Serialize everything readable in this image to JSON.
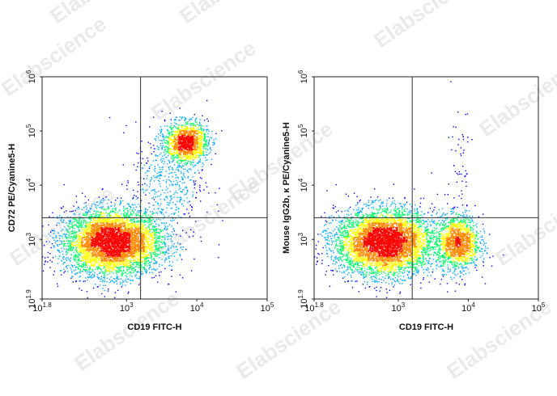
{
  "watermark": "Elabscience",
  "chart_data": [
    {
      "type": "scatter",
      "title": "",
      "xlabel": "CD19 FITC-H",
      "ylabel": "CD72 PE/Cyanine5-H",
      "xscale": "log",
      "yscale": "log",
      "xlim_log10": [
        1.8,
        5
      ],
      "ylim_log10": [
        1.9,
        6
      ],
      "x_tick_labels": [
        {
          "value": 1.8,
          "base": "10",
          "exp": "1.8"
        },
        {
          "value": 3,
          "base": "10",
          "exp": "3"
        },
        {
          "value": 4,
          "base": "10",
          "exp": "4"
        },
        {
          "value": 5,
          "base": "10",
          "exp": "5"
        }
      ],
      "y_tick_labels": [
        {
          "value": 1.9,
          "base": "10",
          "exp": "1.9"
        },
        {
          "value": 3,
          "base": "10",
          "exp": "3"
        },
        {
          "value": 4,
          "base": "10",
          "exp": "4"
        },
        {
          "value": 5,
          "base": "10",
          "exp": "5"
        },
        {
          "value": 6,
          "base": "10",
          "exp": "6"
        }
      ],
      "gate_x_log10": 3.2,
      "gate_y_log10": 3.4,
      "populations": [
        {
          "center_log10": [
            2.8,
            2.95
          ],
          "spread_log10": [
            0.35,
            0.3
          ],
          "events": 5200
        },
        {
          "center_log10": [
            3.85,
            4.8
          ],
          "spread_log10": [
            0.15,
            0.18
          ],
          "events": 1400
        },
        {
          "center_log10": [
            3.6,
            4.1
          ],
          "spread_log10": [
            0.25,
            0.55
          ],
          "events": 500
        }
      ],
      "density_colors": [
        "#0000ff",
        "#00aaff",
        "#00ff66",
        "#ffff00",
        "#ff8800",
        "#ff0000"
      ]
    },
    {
      "type": "scatter",
      "title": "",
      "xlabel": "CD19 FITC-H",
      "ylabel": "Mouse IgG2b, κ PE/Cyanine5-H",
      "xscale": "log",
      "yscale": "log",
      "xlim_log10": [
        1.8,
        5
      ],
      "ylim_log10": [
        1.9,
        6
      ],
      "x_tick_labels": [
        {
          "value": 1.8,
          "base": "10",
          "exp": "1.8"
        },
        {
          "value": 3,
          "base": "10",
          "exp": "3"
        },
        {
          "value": 4,
          "base": "10",
          "exp": "4"
        },
        {
          "value": 5,
          "base": "10",
          "exp": "5"
        }
      ],
      "y_tick_labels": [
        {
          "value": 1.9,
          "base": "10",
          "exp": "1.9"
        },
        {
          "value": 3,
          "base": "10",
          "exp": "3"
        },
        {
          "value": 4,
          "base": "10",
          "exp": "4"
        },
        {
          "value": 5,
          "base": "10",
          "exp": "5"
        },
        {
          "value": 6,
          "base": "10",
          "exp": "6"
        }
      ],
      "gate_x_log10": 3.2,
      "gate_y_log10": 3.4,
      "populations": [
        {
          "center_log10": [
            2.8,
            2.95
          ],
          "spread_log10": [
            0.35,
            0.3
          ],
          "events": 5200
        },
        {
          "center_log10": [
            3.85,
            2.95
          ],
          "spread_log10": [
            0.15,
            0.25
          ],
          "events": 1500
        },
        {
          "center_log10": [
            3.85,
            4.3
          ],
          "spread_log10": [
            0.1,
            0.8
          ],
          "events": 60
        }
      ],
      "density_colors": [
        "#0000ff",
        "#00aaff",
        "#00ff66",
        "#ffff00",
        "#ff8800",
        "#ff0000"
      ]
    }
  ]
}
